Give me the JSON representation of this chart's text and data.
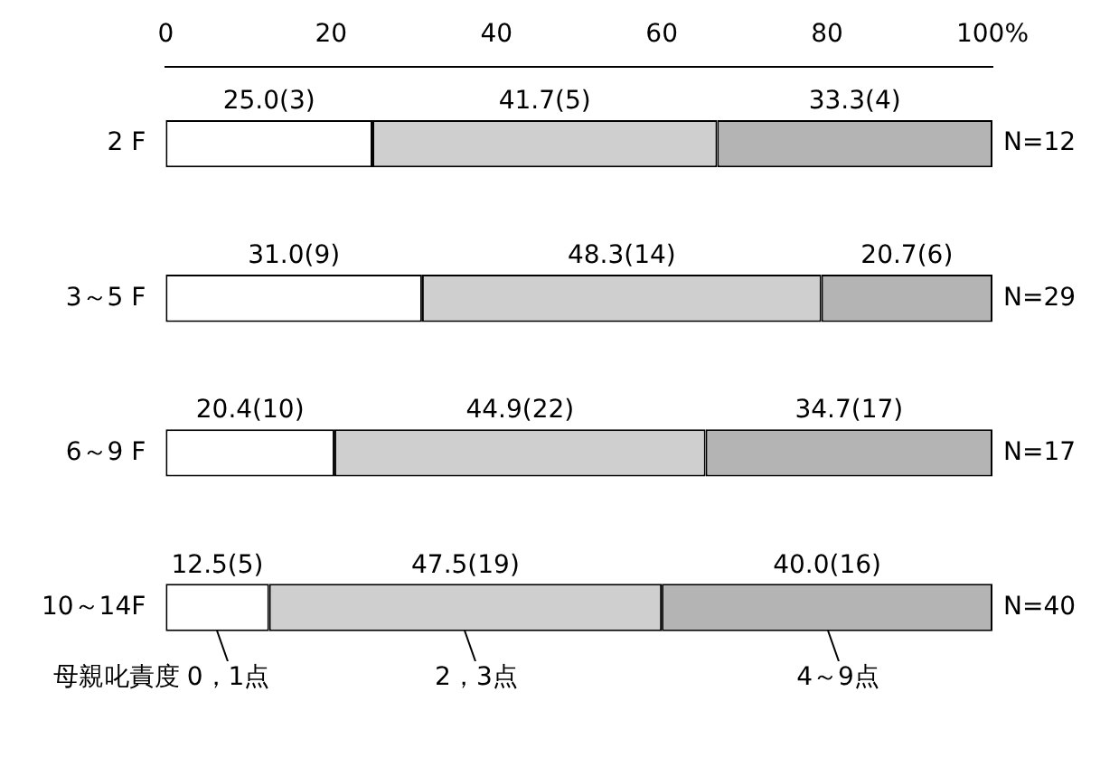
{
  "chart_data": {
    "type": "bar",
    "orientation": "horizontal",
    "stacked": true,
    "categories": [
      "2 F",
      "3～5 F",
      "6～9 F",
      "10～14F"
    ],
    "xlim": [
      0,
      100
    ],
    "xticks": [
      0,
      20,
      40,
      60,
      80,
      {
        "value": 100,
        "label": "100%"
      }
    ],
    "grid": false,
    "legend": "bottom",
    "legend_title": "母親叱責度",
    "series": [
      {
        "name": "0，1点",
        "color": "#ffffff",
        "values": [
          25.0,
          31.0,
          20.4,
          12.5
        ],
        "value_labels": [
          "25.0(3)",
          "31.0(9)",
          "20.4(10)",
          "12.5(5)"
        ]
      },
      {
        "name": "2，3点",
        "color": "#cfcfcf",
        "values": [
          41.7,
          48.3,
          44.9,
          47.5
        ],
        "value_labels": [
          "41.7(5)",
          "48.3(14)",
          "44.9(22)",
          "47.5(19)"
        ]
      },
      {
        "name": "4～9点",
        "color": "#b4b4b4",
        "values": [
          33.3,
          20.7,
          34.7,
          40.0
        ],
        "value_labels": [
          "33.3(4)",
          "20.7(6)",
          "34.7(17)",
          "40.0(16)"
        ]
      }
    ],
    "annotations": [
      "N=12",
      "N=29",
      "N=17",
      "N=40"
    ]
  }
}
